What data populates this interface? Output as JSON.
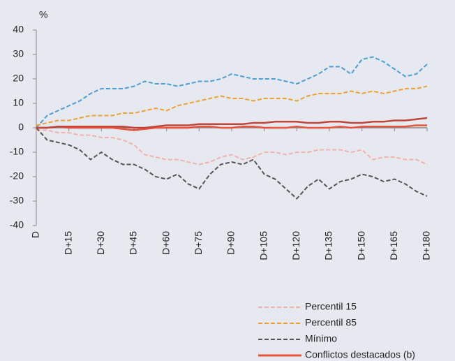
{
  "chart_data": {
    "type": "line",
    "y_label": "%",
    "x": [
      0,
      5,
      10,
      15,
      20,
      25,
      30,
      35,
      40,
      45,
      50,
      55,
      60,
      65,
      70,
      75,
      80,
      85,
      90,
      95,
      100,
      105,
      110,
      115,
      120,
      125,
      130,
      135,
      140,
      145,
      150,
      155,
      160,
      165,
      170,
      175,
      180
    ],
    "xlim": [
      0,
      180
    ],
    "xticks": [
      {
        "value": 0,
        "label": "D"
      },
      {
        "value": 15,
        "label": "D+15"
      },
      {
        "value": 30,
        "label": "D+30"
      },
      {
        "value": 45,
        "label": "D+45"
      },
      {
        "value": 60,
        "label": "D+60"
      },
      {
        "value": 75,
        "label": "D+75"
      },
      {
        "value": 90,
        "label": "D+90"
      },
      {
        "value": 105,
        "label": "D+105"
      },
      {
        "value": 120,
        "label": "D+120"
      },
      {
        "value": 135,
        "label": "D+135"
      },
      {
        "value": 150,
        "label": "D+150"
      },
      {
        "value": 165,
        "label": "D+165"
      },
      {
        "value": 180,
        "label": "D+180"
      }
    ],
    "ylim": [
      -40,
      40
    ],
    "yticks": [
      -40,
      -30,
      -20,
      -10,
      0,
      10,
      20,
      30,
      40
    ],
    "series": [
      {
        "color": "#4a9fd8",
        "dash": true,
        "values": [
          0,
          5,
          7,
          9,
          11,
          14,
          16,
          16,
          16,
          17,
          19,
          18,
          18,
          17,
          18,
          19,
          19,
          20,
          22,
          21,
          20,
          20,
          20,
          19,
          18,
          20,
          22,
          25,
          25,
          22,
          28,
          29,
          27,
          24,
          21,
          22,
          26
        ]
      },
      {
        "name": "Percentil 15",
        "color": "#f4b3a8",
        "dash": true,
        "values": [
          -1,
          -1,
          -2,
          -2,
          -3,
          -3,
          -4,
          -4,
          -5,
          -7,
          -11,
          -12,
          -13,
          -13,
          -14,
          -15,
          -14,
          -12,
          -11,
          -13,
          -12,
          -10,
          -10,
          -11,
          -10,
          -10,
          -9,
          -9,
          -9,
          -10,
          -9,
          -13,
          -12,
          -12,
          -13,
          -13,
          -15
        ]
      },
      {
        "name": "Percentil 85",
        "color": "#f0a030",
        "dash": true,
        "values": [
          1,
          2,
          3,
          3,
          4,
          5,
          5,
          5,
          6,
          6,
          7,
          8,
          7,
          9,
          10,
          11,
          12,
          13,
          12,
          12,
          11,
          12,
          12,
          12,
          11,
          13,
          14,
          14,
          14,
          15,
          14,
          15,
          14,
          15,
          16,
          16,
          17
        ]
      },
      {
        "name": "Mínimo",
        "color": "#555555",
        "dash": true,
        "values": [
          0,
          -5,
          -6,
          -7,
          -9,
          -13,
          -10,
          -13,
          -15,
          -15,
          -17,
          -20,
          -21,
          -19,
          -23,
          -25,
          -19,
          -15,
          -14,
          -15,
          -13,
          -19,
          -21,
          -25,
          -29,
          -24,
          -21,
          -25,
          -22,
          -21,
          -19,
          -20,
          -22,
          -21,
          -23,
          -26,
          -28
        ]
      },
      {
        "name": "Conflictos destacados (b)",
        "color": "#e8533a",
        "dash": false,
        "values": [
          0,
          0,
          0.5,
          0,
          0,
          0,
          0,
          0,
          -0.5,
          -1,
          -0.5,
          0,
          0,
          0,
          0,
          0.5,
          0.5,
          0,
          0,
          0.5,
          0.5,
          0,
          0,
          0,
          0.5,
          0,
          0,
          0,
          0.5,
          0,
          0.5,
          0.5,
          0.5,
          0.5,
          0.5,
          1,
          1
        ]
      },
      {
        "color": "#c0463a",
        "dash": false,
        "values": [
          0,
          0,
          0.5,
          0.5,
          0.5,
          0.5,
          0.5,
          0.5,
          0.5,
          0,
          0,
          0.5,
          1,
          1,
          1,
          1.5,
          1.5,
          1.5,
          1.5,
          1.5,
          2,
          2,
          2.5,
          2.5,
          2.5,
          2,
          2,
          2.5,
          2.5,
          2,
          2,
          2.5,
          2.5,
          3,
          3,
          3.5,
          4
        ]
      }
    ]
  }
}
